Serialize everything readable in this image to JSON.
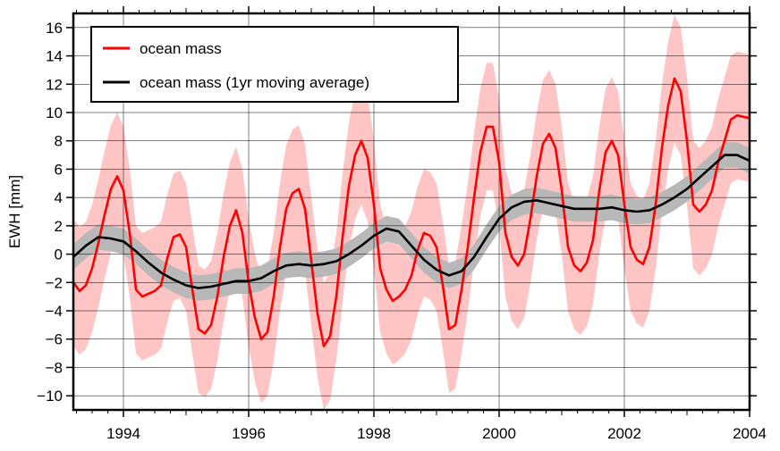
{
  "chart_data": {
    "type": "line",
    "title": "",
    "xlabel": "",
    "ylabel": "EWH [mm]",
    "xlim": [
      1993.2,
      2004.0
    ],
    "ylim": [
      -11,
      17
    ],
    "x_ticks": [
      1994,
      1996,
      1998,
      2000,
      2002,
      2004
    ],
    "x_tick_labels": [
      "1994",
      "1996",
      "1998",
      "2000",
      "2002",
      "2004"
    ],
    "y_ticks": [
      -10,
      -8,
      -6,
      -4,
      -2,
      0,
      2,
      4,
      6,
      8,
      10,
      12,
      14,
      16
    ],
    "y_tick_labels": [
      "−10",
      "−8",
      "−6",
      "−4",
      "−2",
      "0",
      "2",
      "4",
      "6",
      "8",
      "10",
      "12",
      "14",
      "16"
    ],
    "grid": true,
    "legend_position": "top-left",
    "colors": {
      "series_main": "#ff0000",
      "series_band": "#ffc4c4",
      "series_avg": "#000000",
      "avg_band": "#b8b8b8"
    },
    "series": [
      {
        "name": "ocean mass",
        "color": "#ff0000",
        "band_half_width": 4.5,
        "x": [
          1993.2,
          1993.3,
          1993.4,
          1993.5,
          1993.6,
          1993.7,
          1993.8,
          1993.9,
          1994.0,
          1994.1,
          1994.2,
          1994.3,
          1994.4,
          1994.5,
          1994.6,
          1994.7,
          1994.8,
          1994.9,
          1995.0,
          1995.1,
          1995.2,
          1995.3,
          1995.4,
          1995.5,
          1995.6,
          1995.7,
          1995.8,
          1995.9,
          1996.0,
          1996.1,
          1996.2,
          1996.3,
          1996.4,
          1996.5,
          1996.6,
          1996.7,
          1996.8,
          1996.9,
          1997.0,
          1997.1,
          1997.2,
          1997.3,
          1997.4,
          1997.5,
          1997.6,
          1997.7,
          1997.8,
          1997.9,
          1998.0,
          1998.1,
          1998.2,
          1998.3,
          1998.4,
          1998.5,
          1998.6,
          1998.7,
          1998.8,
          1998.9,
          1999.0,
          1999.1,
          1999.2,
          1999.3,
          1999.4,
          1999.5,
          1999.6,
          1999.7,
          1999.8,
          1999.9,
          2000.0,
          2000.1,
          2000.2,
          2000.3,
          2000.4,
          2000.5,
          2000.6,
          2000.7,
          2000.8,
          2000.9,
          2001.0,
          2001.1,
          2001.2,
          2001.3,
          2001.4,
          2001.5,
          2001.6,
          2001.7,
          2001.8,
          2001.9,
          2002.0,
          2002.1,
          2002.2,
          2002.3,
          2002.4,
          2002.5,
          2002.6,
          2002.7,
          2002.8,
          2002.9,
          2003.0,
          2003.1,
          2003.2,
          2003.3,
          2003.4,
          2003.5,
          2003.6,
          2003.7,
          2003.8,
          2003.9,
          2004.0
        ],
        "y": [
          -2.0,
          -2.6,
          -2.2,
          -1.0,
          0.8,
          2.8,
          4.6,
          5.5,
          4.5,
          1.5,
          -2.5,
          -3.0,
          -2.8,
          -2.6,
          -2.2,
          -0.3,
          1.2,
          1.4,
          0.5,
          -2.5,
          -5.3,
          -5.6,
          -5.0,
          -3.0,
          -0.2,
          2.0,
          3.1,
          1.5,
          -2.0,
          -4.5,
          -6.0,
          -5.5,
          -3.0,
          0.5,
          3.2,
          4.3,
          4.6,
          3.2,
          -0.5,
          -4.2,
          -6.5,
          -5.8,
          -3.0,
          1.2,
          4.8,
          7.0,
          8.0,
          6.8,
          3.5,
          -1.0,
          -2.5,
          -3.3,
          -3.0,
          -2.5,
          -1.5,
          0.3,
          1.5,
          1.3,
          0.5,
          -2.2,
          -5.3,
          -5.0,
          -2.5,
          0.5,
          4.0,
          7.2,
          9.0,
          9.0,
          6.5,
          1.5,
          -0.2,
          -0.8,
          0.0,
          2.5,
          5.5,
          7.8,
          8.5,
          7.5,
          4.5,
          0.5,
          -0.8,
          -1.2,
          -0.6,
          1.0,
          4.5,
          7.2,
          8.0,
          7.0,
          3.5,
          0.5,
          -0.4,
          -0.7,
          0.5,
          3.5,
          7.5,
          10.5,
          12.4,
          11.5,
          8.0,
          3.5,
          3.0,
          3.5,
          4.5,
          6.5,
          8.0,
          9.5,
          9.8,
          9.7,
          9.6
        ]
      },
      {
        "name": "ocean mass (1yr moving average)",
        "color": "#000000",
        "band_half_width": 0.9,
        "x": [
          1993.2,
          1993.4,
          1993.6,
          1993.8,
          1994.0,
          1994.2,
          1994.4,
          1994.6,
          1994.8,
          1995.0,
          1995.2,
          1995.4,
          1995.6,
          1995.8,
          1996.0,
          1996.2,
          1996.4,
          1996.6,
          1996.8,
          1997.0,
          1997.2,
          1997.4,
          1997.6,
          1997.8,
          1998.0,
          1998.2,
          1998.4,
          1998.6,
          1998.8,
          1999.0,
          1999.2,
          1999.4,
          1999.6,
          1999.8,
          2000.0,
          2000.2,
          2000.4,
          2000.6,
          2000.8,
          2001.0,
          2001.2,
          2001.4,
          2001.6,
          2001.8,
          2002.0,
          2002.2,
          2002.4,
          2002.6,
          2002.8,
          2003.0,
          2003.2,
          2003.4,
          2003.6,
          2003.8,
          2004.0
        ],
        "y": [
          -0.2,
          0.6,
          1.2,
          1.1,
          0.9,
          0.2,
          -0.6,
          -1.3,
          -1.8,
          -2.2,
          -2.4,
          -2.3,
          -2.1,
          -1.9,
          -1.9,
          -1.7,
          -1.2,
          -0.8,
          -0.7,
          -0.8,
          -0.7,
          -0.5,
          0.0,
          0.6,
          1.3,
          1.8,
          1.6,
          0.6,
          -0.4,
          -1.1,
          -1.5,
          -1.2,
          -0.2,
          1.2,
          2.5,
          3.3,
          3.7,
          3.8,
          3.6,
          3.4,
          3.2,
          3.2,
          3.2,
          3.3,
          3.1,
          3.0,
          3.1,
          3.5,
          4.0,
          4.6,
          5.4,
          6.2,
          7.0,
          7.0,
          6.6
        ]
      }
    ]
  }
}
